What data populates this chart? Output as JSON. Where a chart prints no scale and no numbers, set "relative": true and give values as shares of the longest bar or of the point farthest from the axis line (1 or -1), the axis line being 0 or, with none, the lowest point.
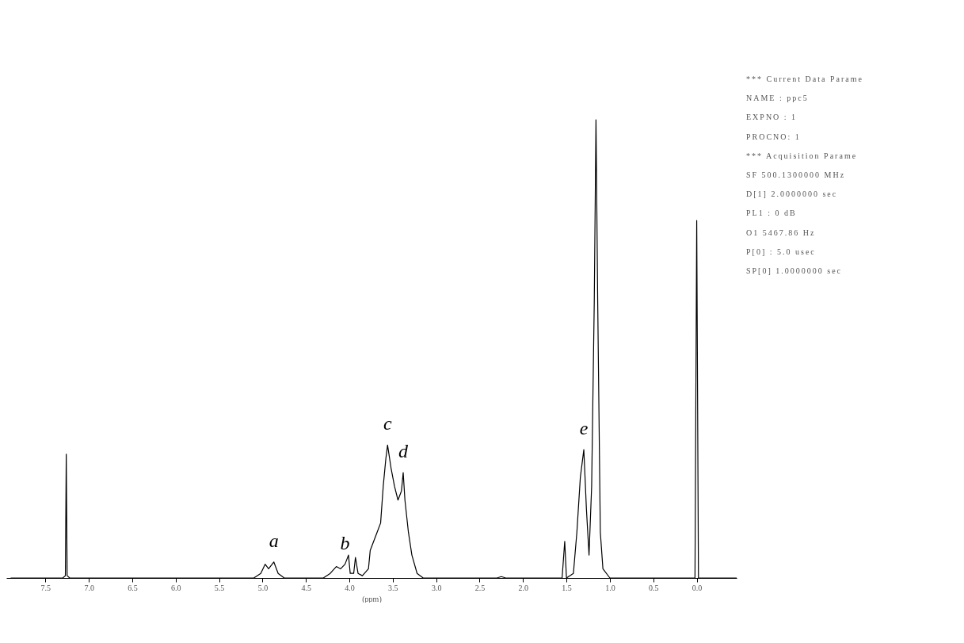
{
  "chart_data": {
    "type": "line",
    "relative": true,
    "xlabel": "(ppm)",
    "xlim": [
      7.95,
      -0.46
    ],
    "xticks": [
      {
        "value": 7.5,
        "label": "7.5"
      },
      {
        "value": 7.0,
        "label": "7.0"
      },
      {
        "value": 6.5,
        "label": "6.5"
      },
      {
        "value": 6.0,
        "label": "6.0"
      },
      {
        "value": 5.5,
        "label": "5.5"
      },
      {
        "value": 5.0,
        "label": "5.0"
      },
      {
        "value": 4.5,
        "label": "4.5"
      },
      {
        "value": 4.0,
        "label": "4.0"
      },
      {
        "value": 3.5,
        "label": "3.5"
      },
      {
        "value": 3.0,
        "label": "3.0"
      },
      {
        "value": 2.5,
        "label": "2.5"
      },
      {
        "value": 2.0,
        "label": "2.0"
      },
      {
        "value": 1.5,
        "label": "1.5"
      },
      {
        "value": 1.0,
        "label": "1.0"
      },
      {
        "value": 0.5,
        "label": "0.5"
      },
      {
        "value": 0.0,
        "label": "0.0"
      }
    ],
    "x": [
      7.9,
      7.3,
      7.27,
      7.26,
      7.25,
      7.22,
      5.1,
      5.02,
      4.97,
      4.93,
      4.87,
      4.82,
      4.75,
      4.3,
      4.22,
      4.15,
      4.1,
      4.05,
      4.01,
      3.99,
      3.95,
      3.93,
      3.9,
      3.85,
      3.78,
      3.76,
      3.72,
      3.68,
      3.64,
      3.61,
      3.58,
      3.56,
      3.52,
      3.48,
      3.44,
      3.4,
      3.38,
      3.36,
      3.32,
      3.28,
      3.22,
      3.15,
      2.3,
      2.25,
      2.2,
      1.55,
      1.52,
      1.5,
      1.42,
      1.38,
      1.34,
      1.3,
      1.27,
      1.24,
      1.21,
      1.18,
      1.16,
      1.14,
      1.11,
      1.08,
      1.0,
      0.02,
      0.0,
      -0.02,
      -0.46
    ],
    "series": [
      {
        "color": "#000000",
        "values": [
          0,
          0,
          0.005,
          0.27,
          0.005,
          0,
          0,
          0.01,
          0.03,
          0.02,
          0.035,
          0.01,
          0,
          0,
          0.01,
          0.025,
          0.02,
          0.03,
          0.05,
          0.01,
          0.01,
          0.045,
          0.01,
          0.005,
          0.02,
          0.06,
          0.08,
          0.1,
          0.12,
          0.2,
          0.26,
          0.29,
          0.24,
          0.2,
          0.17,
          0.19,
          0.23,
          0.17,
          0.1,
          0.05,
          0.01,
          0,
          0,
          0.003,
          0,
          0,
          0.08,
          0,
          0.01,
          0.1,
          0.22,
          0.28,
          0.15,
          0.05,
          0.2,
          0.6,
          1.0,
          0.6,
          0.1,
          0.02,
          0,
          0,
          0.78,
          0,
          0
        ]
      }
    ],
    "line_style": "solid",
    "marker": "none",
    "grid": false,
    "annotations": [
      {
        "text": "a",
        "x": 4.87,
        "y": 0.035
      },
      {
        "text": "b",
        "x": 4.05,
        "y": 0.03
      },
      {
        "text": "c",
        "x": 3.56,
        "y": 0.29
      },
      {
        "text": "d",
        "x": 3.38,
        "y": 0.23
      },
      {
        "text": "e",
        "x": 1.3,
        "y": 0.28
      },
      "*** Current Data Parame",
      "NAME : ppc5",
      "EXPNO : 1",
      "PROCNO: 1",
      "*** Acquisition Parame",
      "SF 500.1300000 MHz",
      "D[1] 2.0000000 sec",
      "PL1 : 0 dB",
      "O1 5467.86 Hz",
      "P[0] : 5.0 usec",
      "SP[0] 1.0000000 sec"
    ]
  }
}
